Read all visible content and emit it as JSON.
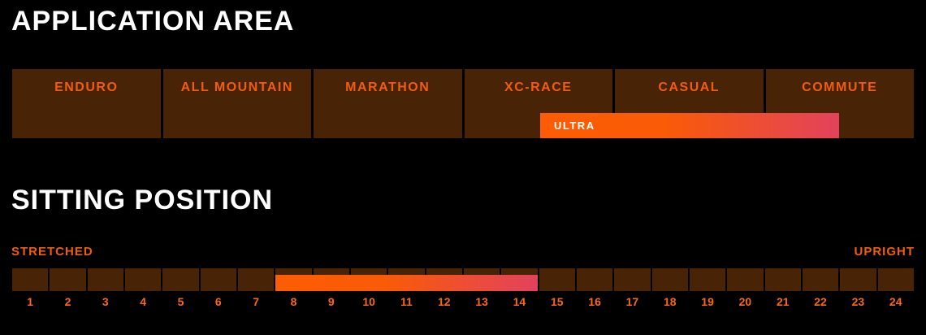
{
  "application_area": {
    "title": "APPLICATION AREA",
    "categories": [
      "ENDURO",
      "ALL MOUNTAIN",
      "MARATHON",
      "XC-RACE",
      "CASUAL",
      "COMMUTE"
    ],
    "range": {
      "label": "ULTRA",
      "from_category": "XC-RACE",
      "to_category": "COMMUTE",
      "coverage": "mid XC-RACE through mid COMMUTE"
    }
  },
  "sitting_position": {
    "title": "SITTING POSITION",
    "left_label": "STRETCHED",
    "right_label": "UPRIGHT",
    "ticks": [
      "1",
      "2",
      "3",
      "4",
      "5",
      "6",
      "7",
      "8",
      "9",
      "10",
      "11",
      "12",
      "13",
      "14",
      "15",
      "16",
      "17",
      "18",
      "19",
      "20",
      "21",
      "22",
      "23",
      "24"
    ],
    "range": {
      "from": 8,
      "to": 14
    }
  },
  "colors": {
    "background": "#000000",
    "cell_brown": "#482306",
    "accent_orange_text": "#f25c0e",
    "tick_orange": "#f8681c",
    "bar_gradient_start": "#fc5c03",
    "bar_gradient_end": "#e2425c",
    "title_white": "#ffffff"
  },
  "chart_data": [
    {
      "type": "bar",
      "title": "APPLICATION AREA",
      "categories": [
        "ENDURO",
        "ALL MOUNTAIN",
        "MARATHON",
        "XC-RACE",
        "CASUAL",
        "COMMUTE"
      ],
      "series": [
        {
          "name": "ULTRA",
          "range_start_category_units": 3.5,
          "range_end_category_units": 5.5,
          "note": "highlight bar spans middle of XC-RACE, all of CASUAL, middle of COMMUTE (category axis 0-6)"
        }
      ],
      "legend_position": "on-bar",
      "grid": false
    },
    {
      "type": "bar",
      "title": "SITTING POSITION",
      "x": [
        1,
        2,
        3,
        4,
        5,
        6,
        7,
        8,
        9,
        10,
        11,
        12,
        13,
        14,
        15,
        16,
        17,
        18,
        19,
        20,
        21,
        22,
        23,
        24
      ],
      "xlim": [
        1,
        24
      ],
      "axis_left_label": "STRETCHED",
      "axis_right_label": "UPRIGHT",
      "highlighted_range": [
        8,
        14
      ],
      "grid": false
    }
  ]
}
